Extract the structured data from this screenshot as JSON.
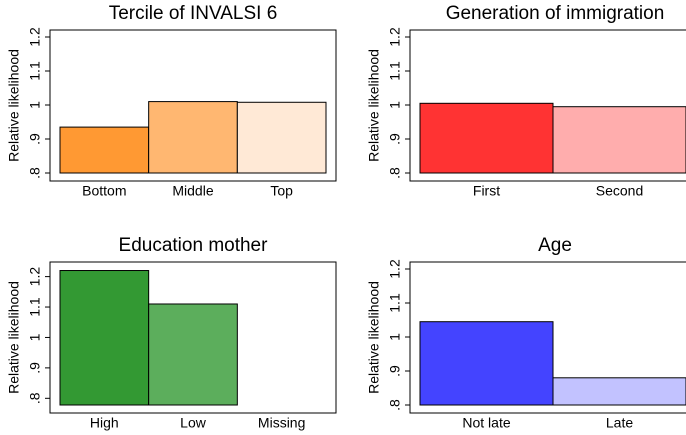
{
  "chart_data": [
    {
      "type": "bar",
      "title": "Tercile of INVALSI 6",
      "y_label": "Relative likelihood",
      "categories": [
        "Bottom",
        "Middle",
        "Top"
      ],
      "values": [
        0.935,
        1.01,
        1.008
      ],
      "colors": [
        "#ff9933",
        "#ffb771",
        "#ffe9d6"
      ],
      "ylim": [
        0.8,
        1.2
      ],
      "yticks": [
        {
          "value": 0.8,
          "label": ".8"
        },
        {
          "value": 0.9,
          "label": ".9"
        },
        1,
        1.1,
        1.2
      ]
    },
    {
      "type": "bar",
      "title": "Generation of immigration",
      "y_label": "Relative likelihood",
      "categories": [
        "First",
        "Second"
      ],
      "values": [
        1.005,
        0.995
      ],
      "colors": [
        "#ff3333",
        "#ffadad"
      ],
      "ylim": [
        0.8,
        1.2
      ],
      "yticks": [
        {
          "value": 0.8,
          "label": ".8"
        },
        {
          "value": 0.9,
          "label": ".9"
        },
        1,
        1.1,
        1.2
      ]
    },
    {
      "type": "bar",
      "title": "Education mother",
      "y_label": "Relative likelihood",
      "categories": [
        "High",
        "Low",
        "Missing"
      ],
      "values": [
        1.22,
        1.11,
        null
      ],
      "colors": [
        "#339933",
        "#5cae5c"
      ],
      "ylim": [
        0.778,
        1.225
      ],
      "yticks": [
        {
          "value": 0.8,
          "label": ".8"
        },
        {
          "value": 0.9,
          "label": ".9"
        },
        1,
        1.1,
        1.2
      ]
    },
    {
      "type": "bar",
      "title": "Age",
      "y_label": "Relative likelihood",
      "categories": [
        "Not late",
        "Late"
      ],
      "values": [
        1.045,
        0.88
      ],
      "colors": [
        "#4444ff",
        "#c2c2ff"
      ],
      "ylim": [
        0.8,
        1.2
      ],
      "yticks": [
        {
          "value": 0.8,
          "label": ".8"
        },
        {
          "value": 0.9,
          "label": ".9"
        },
        1,
        1.1,
        1.2
      ]
    }
  ]
}
